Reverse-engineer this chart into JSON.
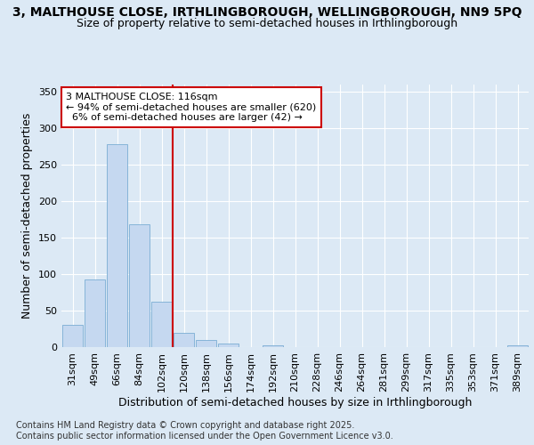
{
  "title_line1": "3, MALTHOUSE CLOSE, IRTHLINGBOROUGH, WELLINGBOROUGH, NN9 5PQ",
  "title_line2": "Size of property relative to semi-detached houses in Irthlingborough",
  "xlabel": "Distribution of semi-detached houses by size in Irthlingborough",
  "ylabel": "Number of semi-detached properties",
  "bar_labels": [
    "31sqm",
    "49sqm",
    "66sqm",
    "84sqm",
    "102sqm",
    "120sqm",
    "138sqm",
    "156sqm",
    "174sqm",
    "192sqm",
    "210sqm",
    "228sqm",
    "246sqm",
    "264sqm",
    "281sqm",
    "299sqm",
    "317sqm",
    "335sqm",
    "353sqm",
    "371sqm",
    "389sqm"
  ],
  "bar_values": [
    30,
    93,
    278,
    168,
    62,
    20,
    10,
    5,
    0,
    2,
    0,
    0,
    0,
    0,
    0,
    0,
    0,
    0,
    0,
    0,
    2
  ],
  "bar_color": "#c5d8f0",
  "bar_edge_color": "#7aadd4",
  "vline_color": "#cc0000",
  "annotation_text_line1": "3 MALTHOUSE CLOSE: 116sqm",
  "annotation_text_line2": "← 94% of semi-detached houses are smaller (620)",
  "annotation_text_line3": "  6% of semi-detached houses are larger (42) →",
  "annotation_box_color": "#ffffff",
  "annotation_box_edge": "#cc0000",
  "ylim": [
    0,
    360
  ],
  "yticks": [
    0,
    50,
    100,
    150,
    200,
    250,
    300,
    350
  ],
  "background_color": "#dce9f5",
  "footer_text": "Contains HM Land Registry data © Crown copyright and database right 2025.\nContains public sector information licensed under the Open Government Licence v3.0.",
  "title_fontsize": 10,
  "subtitle_fontsize": 9,
  "axis_label_fontsize": 9,
  "tick_fontsize": 8,
  "annotation_fontsize": 8,
  "footer_fontsize": 7
}
